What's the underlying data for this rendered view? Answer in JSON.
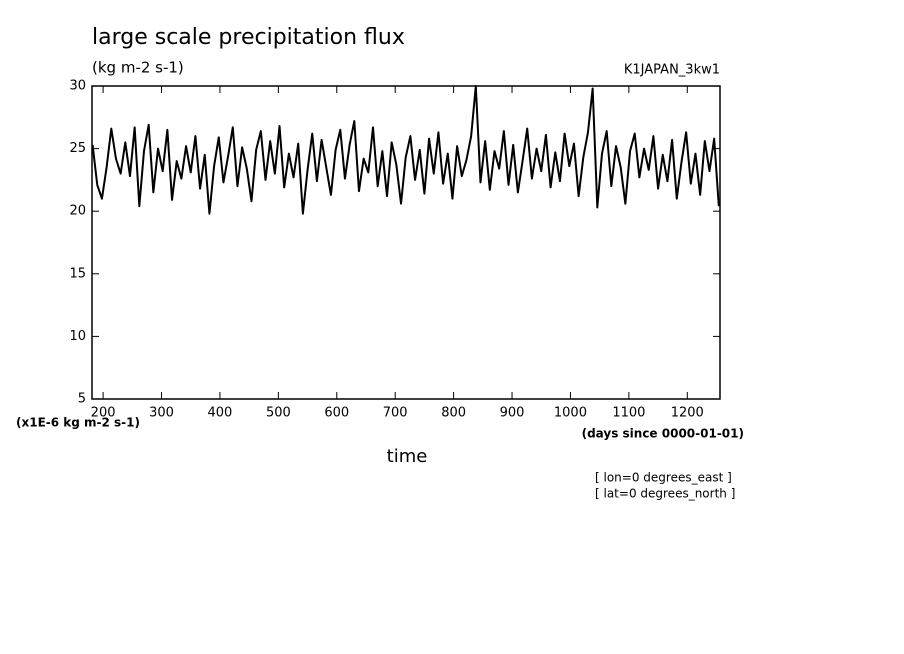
{
  "chart_data": {
    "type": "line",
    "title": "large scale precipitation flux",
    "subtitle": "(kg m-2 s-1)",
    "dataset_label": "K1JAPAN_3kw1",
    "y_unit_label": "(x1E-6 kg m-2 s-1)",
    "x_unit_label": "(days since 0000-01-01)",
    "x_label": "time",
    "annotations": [
      "[ lon=0 degrees_east ]",
      "[ lat=0 degrees_north ]"
    ],
    "xlim": [
      181,
      1256
    ],
    "xticks": [
      200,
      300,
      400,
      500,
      600,
      700,
      800,
      900,
      1000,
      1100,
      1200
    ],
    "ylim": [
      5,
      30
    ],
    "yticks": [
      5,
      10,
      15,
      20,
      25,
      30
    ],
    "x": [
      182,
      190,
      198,
      206,
      214,
      222,
      230,
      238,
      246,
      254,
      262,
      270,
      278,
      286,
      294,
      302,
      310,
      318,
      326,
      334,
      342,
      350,
      358,
      366,
      374,
      382,
      390,
      398,
      406,
      414,
      422,
      430,
      438,
      446,
      454,
      462,
      470,
      478,
      486,
      494,
      502,
      510,
      518,
      526,
      534,
      542,
      550,
      558,
      566,
      574,
      582,
      590,
      598,
      606,
      614,
      622,
      630,
      638,
      646,
      654,
      662,
      670,
      678,
      686,
      694,
      702,
      710,
      718,
      726,
      734,
      742,
      750,
      758,
      766,
      774,
      782,
      790,
      798,
      806,
      814,
      822,
      830,
      838,
      846,
      854,
      862,
      870,
      878,
      886,
      894,
      902,
      910,
      918,
      926,
      934,
      942,
      950,
      958,
      966,
      974,
      982,
      990,
      998,
      1006,
      1014,
      1022,
      1030,
      1038,
      1046,
      1054,
      1062,
      1070,
      1078,
      1086,
      1094,
      1102,
      1110,
      1118,
      1126,
      1134,
      1142,
      1150,
      1158,
      1166,
      1174,
      1182,
      1190,
      1198,
      1206,
      1214,
      1222,
      1230,
      1238,
      1246,
      1254
    ],
    "series": [
      {
        "color": "#000000",
        "values": [
          25.3,
          22.1,
          21.0,
          23.5,
          26.6,
          24.2,
          23.0,
          25.5,
          22.8,
          26.7,
          20.4,
          24.8,
          26.9,
          21.5,
          25.0,
          23.2,
          26.5,
          20.9,
          24.0,
          22.6,
          25.2,
          23.1,
          26.0,
          21.8,
          24.5,
          19.8,
          23.6,
          25.9,
          22.3,
          24.4,
          26.7,
          22.0,
          25.1,
          23.4,
          20.8,
          24.9,
          26.4,
          22.5,
          25.6,
          23.0,
          26.8,
          21.9,
          24.6,
          22.7,
          25.4,
          19.8,
          23.3,
          26.2,
          22.4,
          25.7,
          23.5,
          21.3,
          24.9,
          26.5,
          22.6,
          25.3,
          27.2,
          21.6,
          24.2,
          23.1,
          26.7,
          22.0,
          24.8,
          21.2,
          25.5,
          23.7,
          20.6,
          24.3,
          26.0,
          22.5,
          24.9,
          21.4,
          25.8,
          23.0,
          26.3,
          22.2,
          24.6,
          21.0,
          25.2,
          22.8,
          24.1,
          26.0,
          30.0,
          22.3,
          25.6,
          21.7,
          24.8,
          23.4,
          26.4,
          22.1,
          25.3,
          21.5,
          24.0,
          26.6,
          22.6,
          25.0,
          23.2,
          26.1,
          21.9,
          24.7,
          22.4,
          26.2,
          23.6,
          25.4,
          21.2,
          24.3,
          26.3,
          29.8,
          20.3,
          24.6,
          26.4,
          22.0,
          25.2,
          23.5,
          20.6,
          24.8,
          26.2,
          22.7,
          25.0,
          23.3,
          26.0,
          21.8,
          24.5,
          22.4,
          25.7,
          21.0,
          23.9,
          26.3,
          22.2,
          24.6,
          21.3,
          25.6,
          23.2,
          25.8,
          20.4
        ]
      }
    ]
  }
}
